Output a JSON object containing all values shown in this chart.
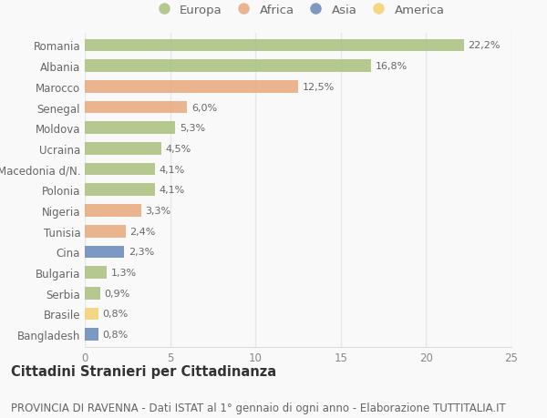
{
  "countries": [
    "Romania",
    "Albania",
    "Marocco",
    "Senegal",
    "Moldova",
    "Ucraina",
    "Macedonia d/N.",
    "Polonia",
    "Nigeria",
    "Tunisia",
    "Cina",
    "Bulgaria",
    "Serbia",
    "Brasile",
    "Bangladesh"
  ],
  "values": [
    22.2,
    16.8,
    12.5,
    6.0,
    5.3,
    4.5,
    4.1,
    4.1,
    3.3,
    2.4,
    2.3,
    1.3,
    0.9,
    0.8,
    0.8
  ],
  "labels": [
    "22,2%",
    "16,8%",
    "12,5%",
    "6,0%",
    "5,3%",
    "4,5%",
    "4,1%",
    "4,1%",
    "3,3%",
    "2,4%",
    "2,3%",
    "1,3%",
    "0,9%",
    "0,8%",
    "0,8%"
  ],
  "continents": [
    "Europa",
    "Europa",
    "Africa",
    "Africa",
    "Europa",
    "Europa",
    "Europa",
    "Europa",
    "Africa",
    "Africa",
    "Asia",
    "Europa",
    "Europa",
    "America",
    "Asia"
  ],
  "colors": {
    "Europa": "#a8c07e",
    "Africa": "#e8a87c",
    "Asia": "#6688bb",
    "America": "#f5d06e"
  },
  "legend_order": [
    "Europa",
    "Africa",
    "Asia",
    "America"
  ],
  "title": "Cittadini Stranieri per Cittadinanza",
  "subtitle": "PROVINCIA DI RAVENNA - Dati ISTAT al 1° gennaio di ogni anno - Elaborazione TUTTITALIA.IT",
  "xlim": [
    0,
    25
  ],
  "xticks": [
    0,
    5,
    10,
    15,
    20,
    25
  ],
  "background_color": "#f9f9f9",
  "grid_color": "#e8e8e8",
  "bar_height": 0.6,
  "title_fontsize": 10.5,
  "subtitle_fontsize": 8.5,
  "label_fontsize": 8,
  "tick_fontsize": 8.5,
  "legend_fontsize": 9.5
}
